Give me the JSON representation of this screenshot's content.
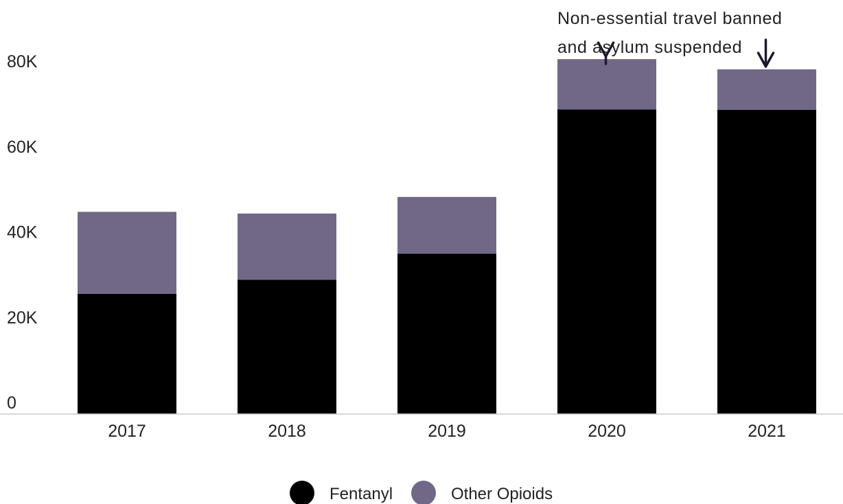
{
  "chart_data": {
    "type": "bar",
    "stacked": true,
    "categories": [
      "2017",
      "2018",
      "2019",
      "2020",
      "2021"
    ],
    "series": [
      {
        "name": "Fentanyl",
        "color": "#000000",
        "values": [
          28200,
          31500,
          37600,
          71400,
          71300
        ]
      },
      {
        "name": "Other Opioids",
        "color": "#716887",
        "values": [
          19200,
          15500,
          13300,
          11800,
          9500
        ]
      }
    ],
    "ylim": [
      0,
      80000
    ],
    "yticks": [
      {
        "value": 0,
        "label": "0"
      },
      {
        "value": 20000,
        "label": "20K"
      },
      {
        "value": 40000,
        "label": "40K"
      },
      {
        "value": 60000,
        "label": "60K"
      },
      {
        "value": 80000,
        "label": "80K"
      }
    ],
    "grid": false,
    "legend": "bottom-center",
    "annotation": {
      "lines": [
        "Non-essential travel banned",
        "and asylum suspended"
      ],
      "targets": [
        "2020",
        "2021"
      ]
    }
  }
}
